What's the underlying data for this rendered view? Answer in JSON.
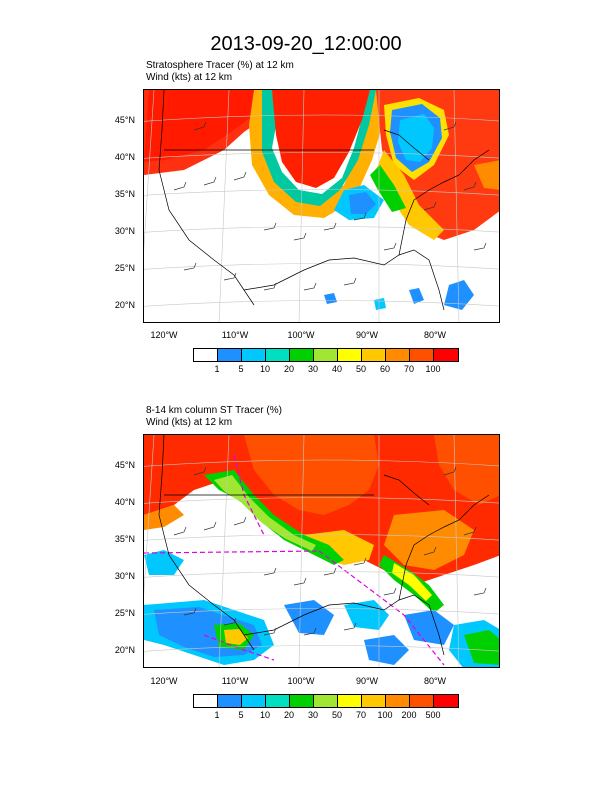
{
  "title": "2013-09-20_12:00:00",
  "panel_top": {
    "title_line1": "Stratosphere Tracer   (%)     at   12 km",
    "title_line2": "Wind   (kts)     at   12 km",
    "lat_labels": [
      "45°N",
      "40°N",
      "35°N",
      "30°N",
      "25°N",
      "20°N"
    ],
    "lon_labels": [
      "120°W",
      "110°W",
      "100°W",
      "90°W",
      "80°W"
    ],
    "colorbar_labels": [
      "1",
      "5",
      "10",
      "20",
      "30",
      "40",
      "50",
      "60",
      "70",
      "100"
    ]
  },
  "panel_bottom": {
    "title_line1": "8-14 km column ST Tracer   (%)",
    "title_line2": "Wind   (kts)     at   12 km",
    "lat_labels": [
      "45°N",
      "40°N",
      "35°N",
      "30°N",
      "25°N",
      "20°N"
    ],
    "lon_labels": [
      "120°W",
      "110°W",
      "100°W",
      "90°W",
      "80°W"
    ],
    "colorbar_labels": [
      "1",
      "5",
      "10",
      "20",
      "30",
      "50",
      "70",
      "100",
      "200",
      "500"
    ]
  },
  "colorbar_colors": [
    "#ffffff",
    "#1e90ff",
    "#00c8ff",
    "#00e0c0",
    "#00d000",
    "#a0e632",
    "#ffff00",
    "#ffc800",
    "#ff8c00",
    "#ff5000",
    "#ff0000"
  ]
}
